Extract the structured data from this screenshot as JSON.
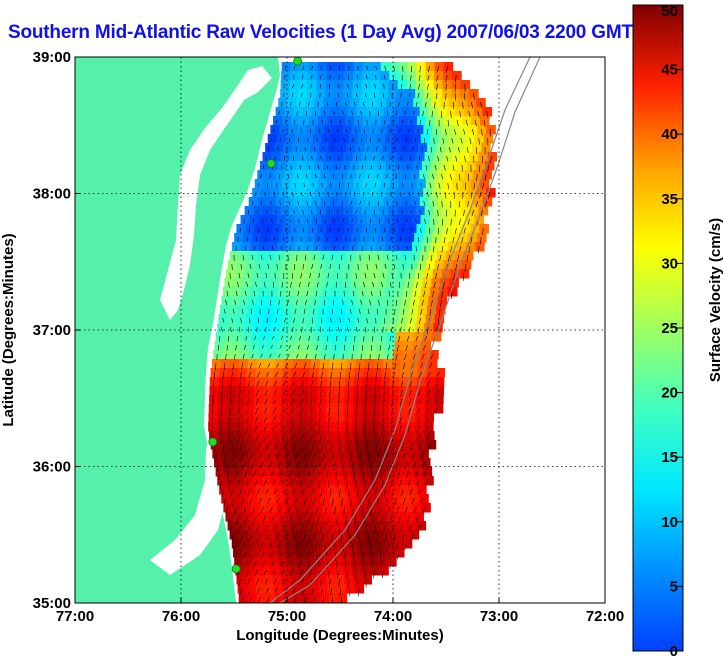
{
  "chart_data": {
    "type": "heatmap",
    "title": "Southern Mid-Atlantic Raw Velocities (1 Day Avg) 2007/06/03 2200 GMT",
    "xlabel": "Longitude (Degrees:Minutes)",
    "ylabel": "Latitude (Degrees:Minutes)",
    "x_ticks": [
      "77:00",
      "76:00",
      "75:00",
      "74:00",
      "73:00",
      "72:00"
    ],
    "x_tick_values": [
      -77,
      -76,
      -75,
      -74,
      -73,
      -72
    ],
    "y_ticks": [
      "35:00",
      "36:00",
      "37:00",
      "38:00",
      "39:00"
    ],
    "y_tick_values": [
      35,
      36,
      37,
      38,
      39
    ],
    "xlim": [
      -77,
      -72
    ],
    "ylim": [
      35,
      39
    ],
    "grid": true,
    "colorbar": {
      "label": "Surface Velocity (cm/s)",
      "range": [
        0,
        50
      ],
      "ticks": [
        0,
        5,
        10,
        15,
        20,
        25,
        30,
        35,
        40,
        45,
        50
      ],
      "colormap": "jet"
    },
    "colors": {
      "title": "#1010e8",
      "land": "#55f0aa",
      "water": "#ffffff",
      "station": "#22dd22"
    },
    "stations": [
      {
        "lon": -74.9,
        "lat": 38.97
      },
      {
        "lon": -75.15,
        "lat": 38.22
      },
      {
        "lon": -75.7,
        "lat": 36.18
      },
      {
        "lon": -75.48,
        "lat": 35.25
      }
    ]
  }
}
